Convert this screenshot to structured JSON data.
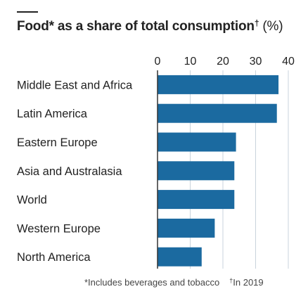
{
  "header": {
    "title_main": "Food* as a share of total consumption",
    "title_dagger": "†",
    "title_unit": "(%)"
  },
  "footnotes": {
    "asterisk_note": "*Includes beverages and tobacco",
    "dagger_mark": "†",
    "dagger_note": "In 2019"
  },
  "colors": {
    "bar": "#1b6aa0",
    "grid": "#c9d3dc",
    "axis": "#333333",
    "text": "#222222"
  },
  "chart_data": {
    "type": "bar",
    "orientation": "horizontal",
    "categories": [
      "Middle East and Africa",
      "Latin America",
      "Eastern Europe",
      "Asia and Australasia",
      "World",
      "Western Europe",
      "North America"
    ],
    "values": [
      37,
      36.5,
      24,
      23.5,
      23.5,
      17.5,
      13.5
    ],
    "xlim": [
      0,
      40
    ],
    "xticks": [
      0,
      10,
      20,
      30,
      40
    ],
    "grid": true,
    "axis_position": "top"
  }
}
